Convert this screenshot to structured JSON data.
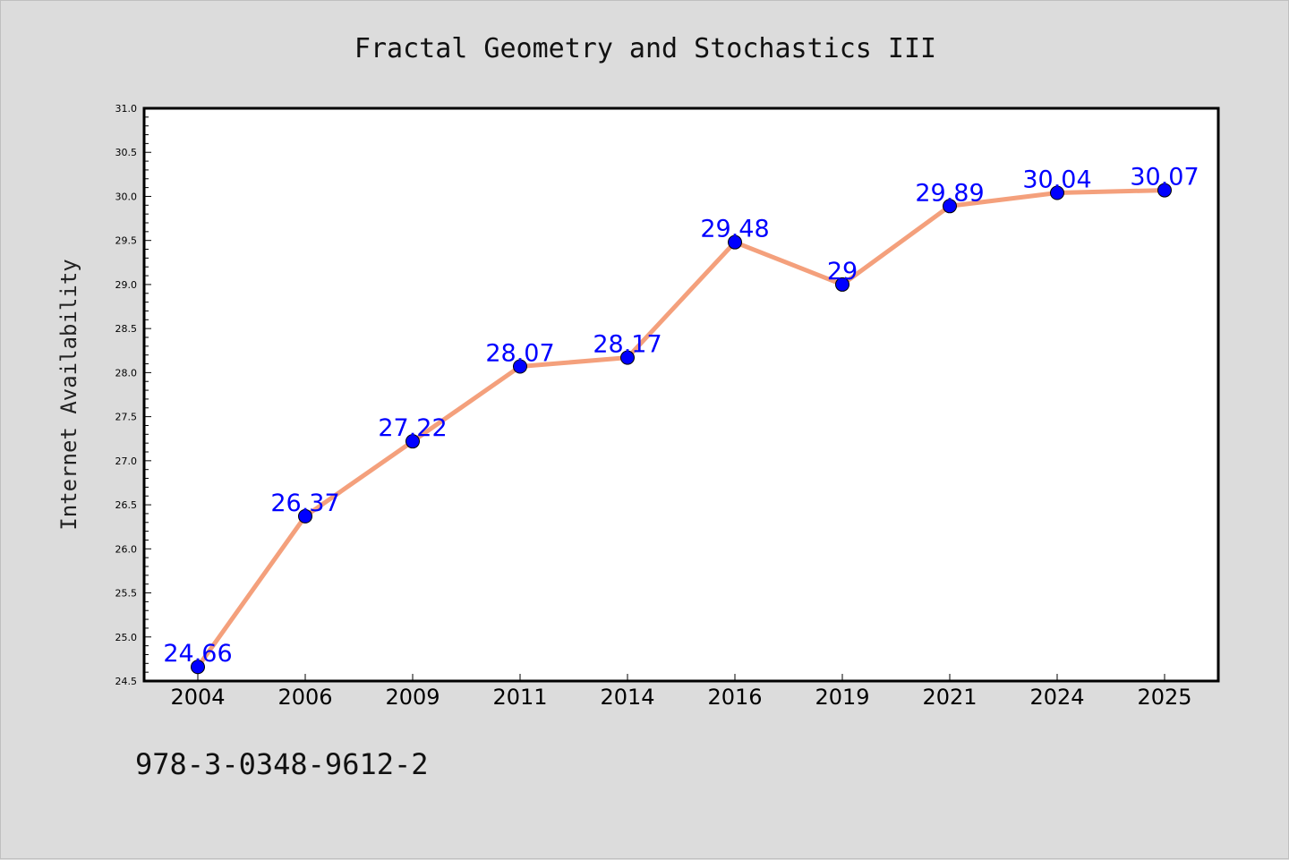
{
  "chart_data": {
    "type": "line",
    "title": "Fractal Geometry and Stochastics III",
    "ylabel": "Internet Availability",
    "xlabel": "",
    "categories": [
      "2004",
      "2006",
      "2009",
      "2011",
      "2014",
      "2016",
      "2019",
      "2021",
      "2024",
      "2025"
    ],
    "values": [
      24.66,
      26.37,
      27.22,
      28.07,
      28.17,
      29.48,
      29,
      29.89,
      30.04,
      30.07
    ],
    "data_labels": [
      "24.66",
      "26.37",
      "27.22",
      "28.07",
      "28.17",
      "29.48",
      "29",
      "29.89",
      "30.04",
      "30.07"
    ],
    "ylim": [
      24.5,
      31.0
    ],
    "yticks": [
      "24.5",
      "25.0",
      "25.5",
      "26.0",
      "26.5",
      "27.0",
      "27.5",
      "28.0",
      "28.5",
      "29.0",
      "29.5",
      "30.0",
      "30.5",
      "31.0"
    ],
    "line_color": "#f4a07c",
    "marker_color": "#0000ff",
    "label_color": "#0000ff",
    "grid": false,
    "legend": "none"
  },
  "footer": {
    "isbn": "978-3-0348-9612-2"
  }
}
